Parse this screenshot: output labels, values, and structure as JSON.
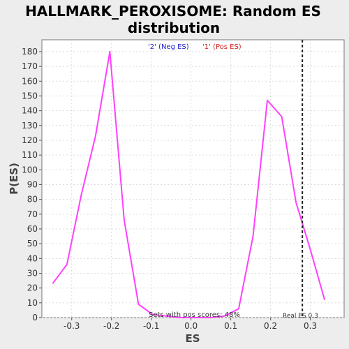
{
  "chart_data": {
    "type": "line",
    "title_line1": "HALLMARK_PEROXISOME: Random ES",
    "title_line2": "distribution",
    "xlabel": "ES",
    "ylabel": "P(ES)",
    "xlim": [
      -0.375,
      0.385
    ],
    "ylim": [
      0,
      188
    ],
    "x_ticks": [
      -0.3,
      -0.2,
      -0.1,
      0.0,
      0.1,
      0.2,
      0.3
    ],
    "x_tick_labels": [
      "-0.3",
      "-0.2",
      "-0.1",
      "0.0",
      "0.1",
      "0.2",
      "0.3"
    ],
    "y_ticks": [
      0,
      10,
      20,
      30,
      40,
      50,
      60,
      70,
      80,
      90,
      100,
      110,
      120,
      130,
      140,
      150,
      160,
      170,
      180
    ],
    "y_tick_labels": [
      "0",
      "10",
      "20",
      "30",
      "40",
      "50",
      "60",
      "70",
      "80",
      "90",
      "100",
      "110",
      "120",
      "130",
      "140",
      "150",
      "160",
      "170",
      "180"
    ],
    "grid": true,
    "legend": [
      {
        "label": "'2' (Neg ES)",
        "color": "#2020d0"
      },
      {
        "label": "'1' (Pos ES)",
        "color": "#d02020"
      }
    ],
    "series": [
      {
        "color": "#ff40ff",
        "x": [
          -0.348,
          -0.312,
          -0.276,
          -0.24,
          -0.204,
          -0.168,
          -0.132,
          -0.096,
          -0.06,
          -0.024,
          0.012,
          0.048,
          0.084,
          0.12,
          0.156,
          0.192,
          0.228,
          0.264,
          0.3,
          0.336
        ],
        "y": [
          23,
          36,
          83,
          123,
          180,
          66,
          9,
          2,
          1,
          0,
          0,
          0,
          1,
          6,
          55,
          147,
          136,
          78,
          46,
          12
        ]
      }
    ],
    "real_es": {
      "x": 0.28,
      "label": "Real ES 0.3"
    },
    "annotation": "Sets with pos scores: 48%"
  }
}
